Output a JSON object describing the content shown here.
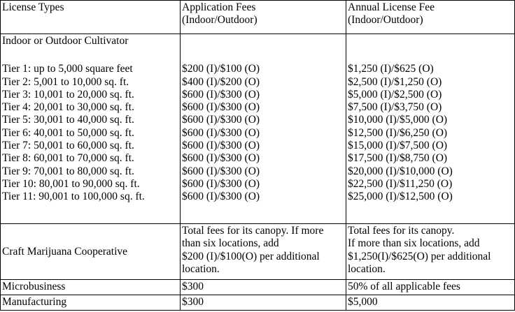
{
  "header": [
    [
      "License Types"
    ],
    [
      "Application Fees",
      "(Indoor/Outdoor)"
    ],
    [
      "Annual License Fee",
      "(Indoor/Outdoor)"
    ]
  ],
  "cultivator": {
    "label": "Indoor or Outdoor Cultivator",
    "tiers": [
      [
        "Tier 1: up to 5,000 square feet",
        "$200 (I)/$100 (O)",
        "$1,250 (I)/$625 (O)"
      ],
      [
        "Tier 2: 5,001 to 10,000 sq. ft.",
        "$400 (I)/$200 (O)",
        "$2,500 (I)/$1,250 (O)"
      ],
      [
        "Tier 3: 10,001 to 20,000 sq. ft.",
        "$600 (I)/$300 (O)",
        "$5,000 (I)/$2,500 (O)"
      ],
      [
        "Tier 4: 20,001 to 30,000 sq. ft.",
        "$600 (I)/$300 (O)",
        "$7,500 (I)/$3,750 (O)"
      ],
      [
        "Tier 5: 30,001 to 40,000 sq. ft.",
        "$600 (I)/$300 (O)",
        "$10,000 (I)/$5,000 (O)"
      ],
      [
        "Tier 6: 40,001 to 50,000 sq. ft.",
        "$600 (I)/$300 (O)",
        "$12,500 (I)/$6,250 (O)"
      ],
      [
        "Tier 7: 50,001 to 60,000 sq. ft.",
        "$600 (I)/$300 (O)",
        "$15,000 (I)/$7,500 (O)"
      ],
      [
        "Tier 8: 60,001 to 70,000 sq. ft.",
        "$600 (I)/$300 (O)",
        "$17,500 (I)/$8,750 (O)"
      ],
      [
        "Tier 9: 70,001 to 80,000 sq. ft.",
        "$600 (I)/$300 (O)",
        "$20,000 (I)/$10,000 (O)"
      ],
      [
        "Tier 10: 80,001 to 90,000 sq. ft.",
        "$600 (I)/$300 (O)",
        "$22,500 (I)/$11,250 (O)"
      ],
      [
        "Tier 11: 90,001 to 100,000 sq. ft.",
        "$600 (I)/$300 (O)",
        "$25,000 (I)/$12,500 (O)"
      ]
    ]
  },
  "craft": {
    "label": "Craft Marijuana Cooperative",
    "application": [
      "Total fees for its canopy. If more",
      "than six locations, add",
      "$200 (I)/$100(O) per additional",
      "location."
    ],
    "annual": [
      "Total fees for its canopy.",
      "If more than six locations, add",
      "$1,250(I)/$625(O) per additional",
      "location."
    ]
  },
  "rows": [
    [
      "Microbusiness",
      "$300",
      "50% of all applicable fees"
    ],
    [
      "Manufacturing",
      "$300",
      "$5,000"
    ]
  ]
}
